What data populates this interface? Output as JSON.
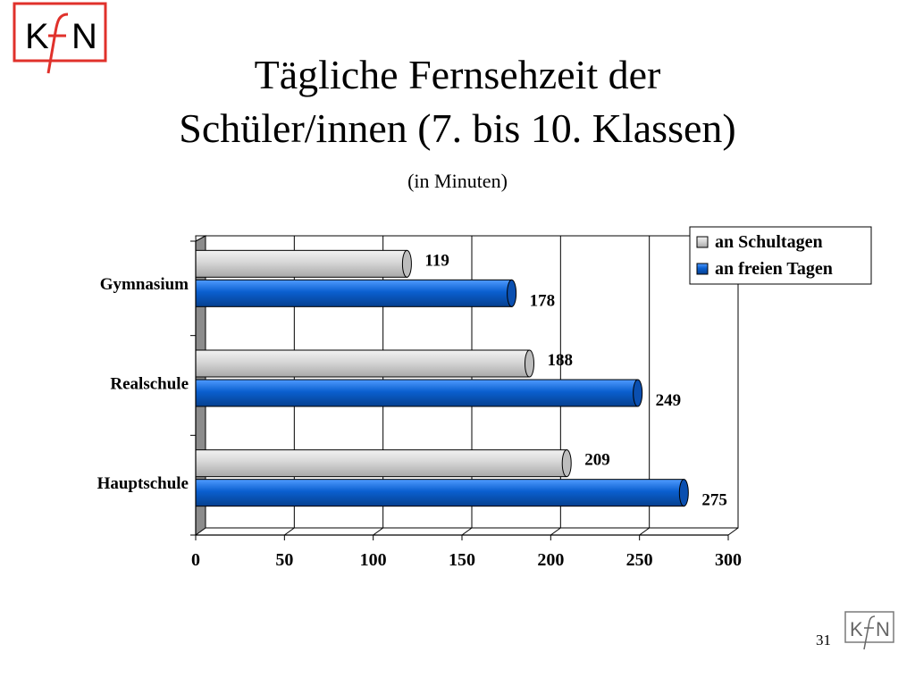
{
  "slide": {
    "title_line1": "Tägliche Fernsehzeit der",
    "title_line2": "Schüler/innen (7. bis 10. Klassen)",
    "subtitle": "(in Minuten)",
    "page_number": "31",
    "logo_text": "KfN"
  },
  "chart_data": {
    "type": "bar",
    "orientation": "horizontal",
    "style": "3d",
    "categories": [
      "Gymnasium",
      "Realschule",
      "Hauptschule"
    ],
    "series": [
      {
        "name": "an Schultagen",
        "values": [
          119,
          188,
          209
        ],
        "color": "#c8c8c8"
      },
      {
        "name": "an freien Tagen",
        "values": [
          178,
          249,
          275
        ],
        "color": "#0a5fcf"
      }
    ],
    "xlim": [
      0,
      300
    ],
    "x_ticks": [
      0,
      50,
      100,
      150,
      200,
      250,
      300
    ],
    "grid": true,
    "legend_position": "top-right"
  }
}
